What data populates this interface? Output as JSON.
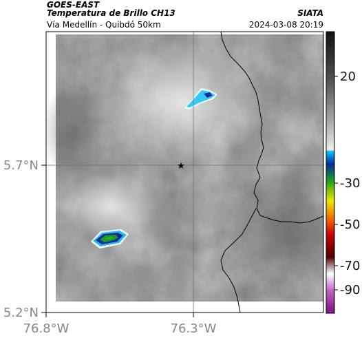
{
  "header": {
    "satellite": "GOES-EAST",
    "product": "Temperatura de Brillo CH13",
    "route": "Vía Medellín - Quibdó 50km",
    "org": "SIATA",
    "datetime": "2024-03-08 20:19"
  },
  "map": {
    "lat_ticks": [
      "5.7°N",
      "5.2°N"
    ],
    "lon_ticks": [
      "76.8°W",
      "76.3°W"
    ],
    "marker": "star"
  },
  "colorbar": {
    "labels": [
      "20",
      "-30",
      "-50",
      "-70",
      "-90"
    ],
    "colors": [
      "#111111",
      "#555555",
      "#aaaaaa",
      "#eeeeee",
      "#00c8ff",
      "#0a2a9a",
      "#1aa01a",
      "#e8e800",
      "#f06000",
      "#cc0000",
      "#550000",
      "#ffffff",
      "#c060c0",
      "#801080"
    ]
  }
}
